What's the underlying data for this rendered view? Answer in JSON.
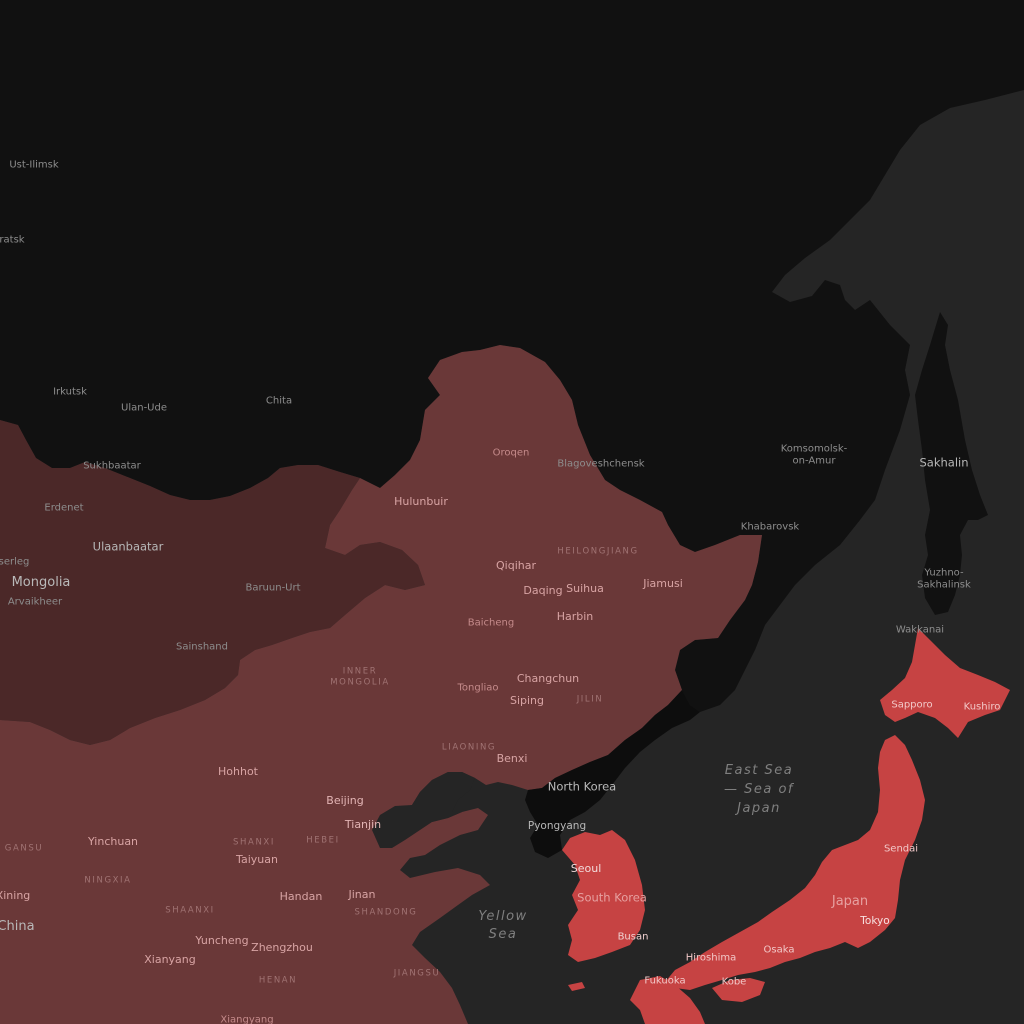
{
  "colors": {
    "sea": "#252525",
    "land_other": "#111111",
    "china": "#6a3838",
    "mongolia": "#4b2828",
    "highlight": "#c64343",
    "north_korea": "#0d0d0d"
  },
  "countries": {
    "mongolia": "Mongolia",
    "china": "China",
    "north_korea": "North Korea",
    "south_korea": "South Korea",
    "japan": "Japan"
  },
  "seas": {
    "east_sea_1": "East Sea",
    "east_sea_2": "— Sea of",
    "east_sea_3": "Japan",
    "yellow_sea_1": "Yellow",
    "yellow_sea_2": "Sea"
  },
  "provinces": {
    "heilongjiang": "HEILONGJIANG",
    "inner_mongolia_1": "INNER",
    "inner_mongolia_2": "MONGOLIA",
    "jilin": "JILIN",
    "liaoning": "LIAONING",
    "gansu": "GANSU",
    "ningxia": "NINGXIA",
    "shanxi": "SHANXI",
    "hebei": "HEBEI",
    "shaanxi": "SHAANXI",
    "shandong": "SHANDONG",
    "henan": "HENAN",
    "jiangsu": "JIANGSU"
  },
  "cities": {
    "ust_ilimsk": "Ust-Ilimsk",
    "bratsk": "ratsk",
    "irkutsk": "Irkutsk",
    "ulan_ude": "Ulan-Ude",
    "chita": "Chita",
    "komsomolsk_1": "Komsomolsk-",
    "komsomolsk_2": "on-Amur",
    "khabarovsk": "Khabarovsk",
    "sakhalin": "Sakhalin",
    "yuzhno_1": "Yuzhno-",
    "yuzhno_2": "Sakhalinsk",
    "wakkanai": "Wakkanai",
    "sukhbaatar": "Sukhbaatar",
    "erdenet": "Erdenet",
    "ulaanbaatar": "Ulaanbaatar",
    "tserleg": "serleg",
    "arvaikheer": "Arvaikheer",
    "baruun_urt": "Baruun-Urt",
    "sainshand": "Sainshand",
    "oroqen": "Oroqen",
    "blagoveshchensk": "Blagoveshchensk",
    "hulunbuir": "Hulunbuir",
    "qiqihar": "Qiqihar",
    "daqing": "Daqing",
    "suihua": "Suihua",
    "jiamusi": "Jiamusi",
    "baicheng": "Baicheng",
    "harbin": "Harbin",
    "changchun": "Changchun",
    "tongliao": "Tongliao",
    "siping": "Siping",
    "benxi": "Benxi",
    "hohhot": "Hohhot",
    "beijing": "Beijing",
    "tianjin": "Tianjin",
    "yinchuan": "Yinchuan",
    "taiyuan": "Taiyuan",
    "handan": "Handan",
    "jinan": "Jinan",
    "xining": "Xining",
    "yuncheng": "Yuncheng",
    "zhengzhou": "Zhengzhou",
    "xianyang": "Xianyang",
    "xiangyang": "Xiangyang",
    "pyongyang": "Pyongyang",
    "seoul": "Seoul",
    "busan": "Busan",
    "sapporo": "Sapporo",
    "kushiro": "Kushiro",
    "sendai": "Sendai",
    "tokyo": "Tokyo",
    "osaka": "Osaka",
    "hiroshima": "Hiroshima",
    "fukuoka": "Fukuoka",
    "kobe": "Kobe"
  }
}
